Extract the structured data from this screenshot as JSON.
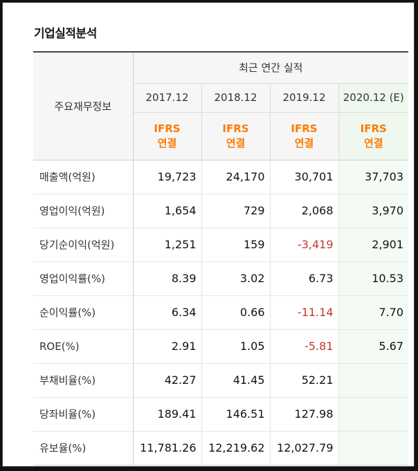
{
  "title": "기업실적분석",
  "table": {
    "item_header": "주요재무정보",
    "group_header": "최근 연간 실적",
    "columns": [
      {
        "period": "2017.12",
        "basis_1": "IFRS",
        "basis_2": "연결",
        "estimate": false
      },
      {
        "period": "2018.12",
        "basis_1": "IFRS",
        "basis_2": "연결",
        "estimate": false
      },
      {
        "period": "2019.12",
        "basis_1": "IFRS",
        "basis_2": "연결",
        "estimate": false
      },
      {
        "period": "2020.12 (E)",
        "basis_1": "IFRS",
        "basis_2": "연결",
        "estimate": true
      }
    ],
    "rows": [
      {
        "label": "매출액(억원)",
        "values": [
          "19,723",
          "24,170",
          "30,701",
          "37,703"
        ]
      },
      {
        "label": "영업이익(억원)",
        "values": [
          "1,654",
          "729",
          "2,068",
          "3,970"
        ]
      },
      {
        "label": "당기순이익(억원)",
        "values": [
          "1,251",
          "159",
          "-3,419",
          "2,901"
        ]
      },
      {
        "label": "영업이익률(%)",
        "values": [
          "8.39",
          "3.02",
          "6.73",
          "10.53"
        ]
      },
      {
        "label": "순이익률(%)",
        "values": [
          "6.34",
          "0.66",
          "-11.14",
          "7.70"
        ]
      },
      {
        "label": "ROE(%)",
        "values": [
          "2.91",
          "1.05",
          "-5.81",
          "5.67"
        ]
      },
      {
        "label": "부채비율(%)",
        "values": [
          "42.27",
          "41.45",
          "52.21",
          ""
        ]
      },
      {
        "label": "당좌비율(%)",
        "values": [
          "189.41",
          "146.51",
          "127.98",
          ""
        ]
      },
      {
        "label": "유보율(%)",
        "values": [
          "11,781.26",
          "12,219.62",
          "12,027.79",
          ""
        ]
      }
    ],
    "colors": {
      "basis": "#ff7a00",
      "negative": "#c0392b",
      "estimate_bg": "#f3fbf4",
      "header_bg": "#f6f6f6"
    }
  }
}
